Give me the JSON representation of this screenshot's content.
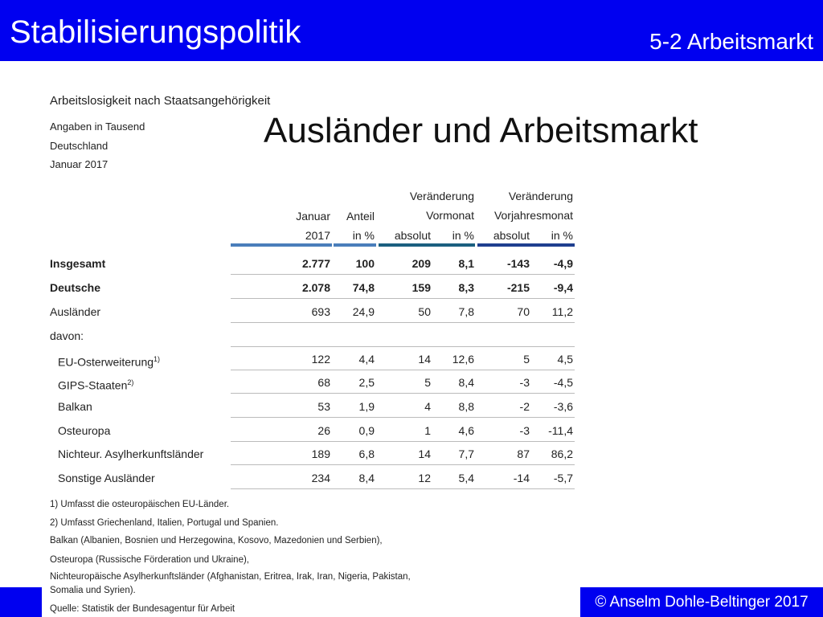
{
  "header": {
    "title": "Stabilisierungspolitik",
    "section": "5-2 Arbeitsmarkt"
  },
  "slide_title": "Ausländer und Arbeitsmarkt",
  "caption": [
    "Arbeitslosigkeit nach Staatsangehörigkeit",
    "Angaben in Tausend",
    "Deutschland",
    "Januar 2017"
  ],
  "table": {
    "group_headers": [
      "Veränderung",
      "Veränderung"
    ],
    "headers_top": [
      "Januar",
      "Anteil",
      "Vormonat",
      "Vorjahresmonat"
    ],
    "headers_bottom": [
      "2017",
      "in %",
      "absolut",
      "in %",
      "absolut",
      "in %"
    ],
    "rows": [
      {
        "label": "Insgesamt",
        "values": [
          "2.777",
          "100",
          "209",
          "8,1",
          "-143",
          "-4,9"
        ]
      },
      {
        "label": "Deutsche",
        "values": [
          "2.078",
          "74,8",
          "159",
          "8,3",
          "-215",
          "-9,4"
        ]
      },
      {
        "label": "Ausländer",
        "values": [
          "693",
          "24,9",
          "50",
          "7,8",
          "70",
          "11,2"
        ]
      },
      {
        "label": "davon:"
      },
      {
        "label": "EU-Osterweiterung",
        "note": "1)",
        "values": [
          "122",
          "4,4",
          "14",
          "12,6",
          "5",
          "4,5"
        ]
      },
      {
        "label": "GIPS-Staaten",
        "note": "2)",
        "values": [
          "68",
          "2,5",
          "5",
          "8,4",
          "-3",
          "-4,5"
        ]
      },
      {
        "label": "Balkan",
        "values": [
          "53",
          "1,9",
          "4",
          "8,8",
          "-2",
          "-3,6"
        ]
      },
      {
        "label": "Osteuropa",
        "values": [
          "26",
          "0,9",
          "1",
          "4,6",
          "-3",
          "-11,4"
        ]
      },
      {
        "label": "Nichteur. Asylherkunftsländer",
        "values": [
          "189",
          "6,8",
          "14",
          "7,7",
          "87",
          "86,2"
        ]
      },
      {
        "label": "Sonstige Ausländer",
        "values": [
          "234",
          "8,4",
          "12",
          "5,4",
          "-14",
          "-5,7"
        ]
      }
    ]
  },
  "footnotes": [
    "1) Umfasst die osteuropäischen EU-Länder.",
    "2) Umfasst Griechenland, Italien, Portugal und Spanien.",
    "Balkan (Albanien, Bosnien und Herzegowina, Kosovo, Mazedonien und Serbien),",
    "Osteuropa (Russische Förderation und Ukraine),",
    "Nichteuropäische Asylherkunftsländer (Afghanistan, Eritrea, Irak, Iran, Nigeria, Pakistan,",
    "Somalia und Syrien).",
    "Quelle: Statistik der Bundesagentur für Arbeit"
  ],
  "footer": "© Anselm Dohle-Beltinger 2017"
}
